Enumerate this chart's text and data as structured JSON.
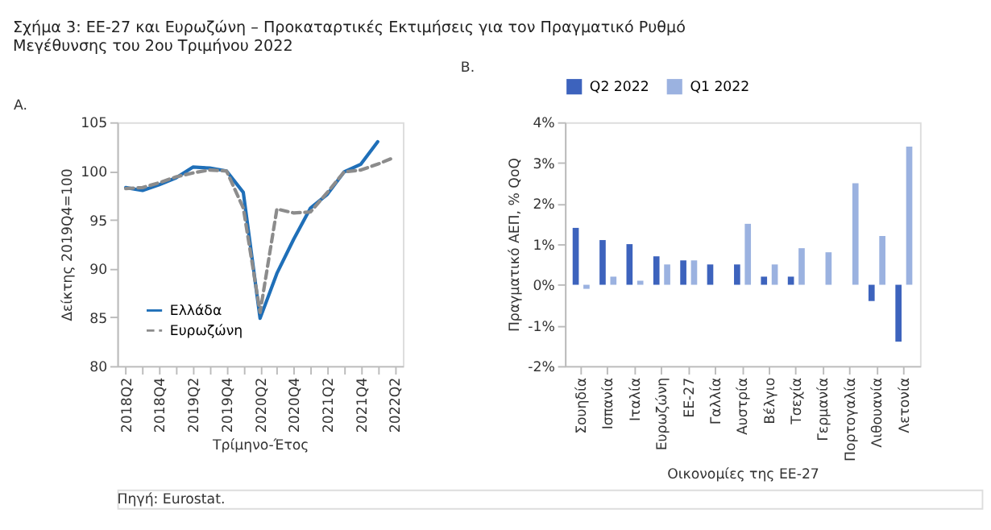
{
  "chart_data": [
    {
      "type": "line",
      "title": "Σχήμα 3: ΕΕ-27 και Ευρωζώνη – Προκαταρτικές Εκτιμήσεις για τον Πραγματικό Ρυθμό Μεγέθυνσης του 2ου Τριμήνου 2022",
      "xlabel": "Τρίμηνο-Έτος",
      "ylabel": "Δείκτης 2019Q4=100",
      "annotations": [
        "A.",
        "Πηγή: Eurostat."
      ],
      "categories": [
        "2018Q2",
        null,
        "2018Q4",
        null,
        "2019Q2",
        null,
        "2019Q4",
        null,
        "2020Q2",
        null,
        "2020Q4",
        null,
        "2021Q2",
        null,
        "2021Q4",
        null,
        "2022Q2"
      ],
      "series": [
        {
          "name": "Ελλάδα",
          "color": "#1f6fb8",
          "line_style": "solid",
          "values": [
            98.3,
            98.0,
            98.6,
            99.3,
            100.4,
            100.3,
            100.0,
            97.8,
            84.9,
            89.5,
            93.0,
            96.2,
            97.6,
            99.9,
            100.7,
            103.0,
            null
          ]
        },
        {
          "name": "Ευρωζώνη",
          "color": "#8c8c8c",
          "line_style": "dashed",
          "values": [
            98.2,
            98.3,
            98.8,
            99.4,
            99.8,
            100.1,
            100.0,
            96.2,
            85.5,
            96.1,
            95.7,
            95.8,
            97.8,
            99.9,
            100.1,
            100.7,
            101.4
          ]
        }
      ],
      "ylim": [
        80,
        105
      ],
      "yticks": [
        80,
        85,
        90,
        95,
        100,
        105
      ],
      "grid": false,
      "legend": "bottom left"
    },
    {
      "type": "bar",
      "xlabel": "Οικονομίες της ΕΕ-27",
      "ylabel": "Πραγματικό ΑΕΠ, % QoQ",
      "annotations": [
        "B."
      ],
      "categories": [
        "Σουηδία",
        "Ισπανία",
        "Ιταλία",
        "Ευρωζώνη",
        "ΕΕ-27",
        "Γαλλία",
        "Αυστρία",
        "Βέλγιο",
        "Τσεχία",
        "Γερμανία",
        "Πορτογαλία",
        "Λιθουανία",
        "Λετονία"
      ],
      "series": [
        {
          "name": "Q2 2022",
          "color": "#3d63bd",
          "values": [
            1.4,
            1.1,
            1.0,
            0.7,
            0.6,
            0.5,
            0.5,
            0.2,
            0.2,
            0.0,
            0.0,
            -0.4,
            -1.4
          ]
        },
        {
          "name": "Q1 2022",
          "color": "#9bb2e0",
          "values": [
            -0.1,
            0.2,
            0.1,
            0.5,
            0.6,
            0.0,
            1.5,
            0.5,
            0.9,
            0.8,
            2.5,
            1.2,
            3.4
          ]
        }
      ],
      "ylim": [
        -2,
        4
      ],
      "yticks": [
        {
          "value": -2,
          "label": "-2%"
        },
        {
          "value": -1,
          "label": "-1%"
        },
        {
          "value": 0,
          "label": "0%"
        },
        {
          "value": 1,
          "label": "1%"
        },
        {
          "value": 2,
          "label": "2%"
        },
        {
          "value": 3,
          "label": "3%"
        },
        {
          "value": 4,
          "label": "4%"
        }
      ],
      "grid": false,
      "legend": "top"
    }
  ]
}
